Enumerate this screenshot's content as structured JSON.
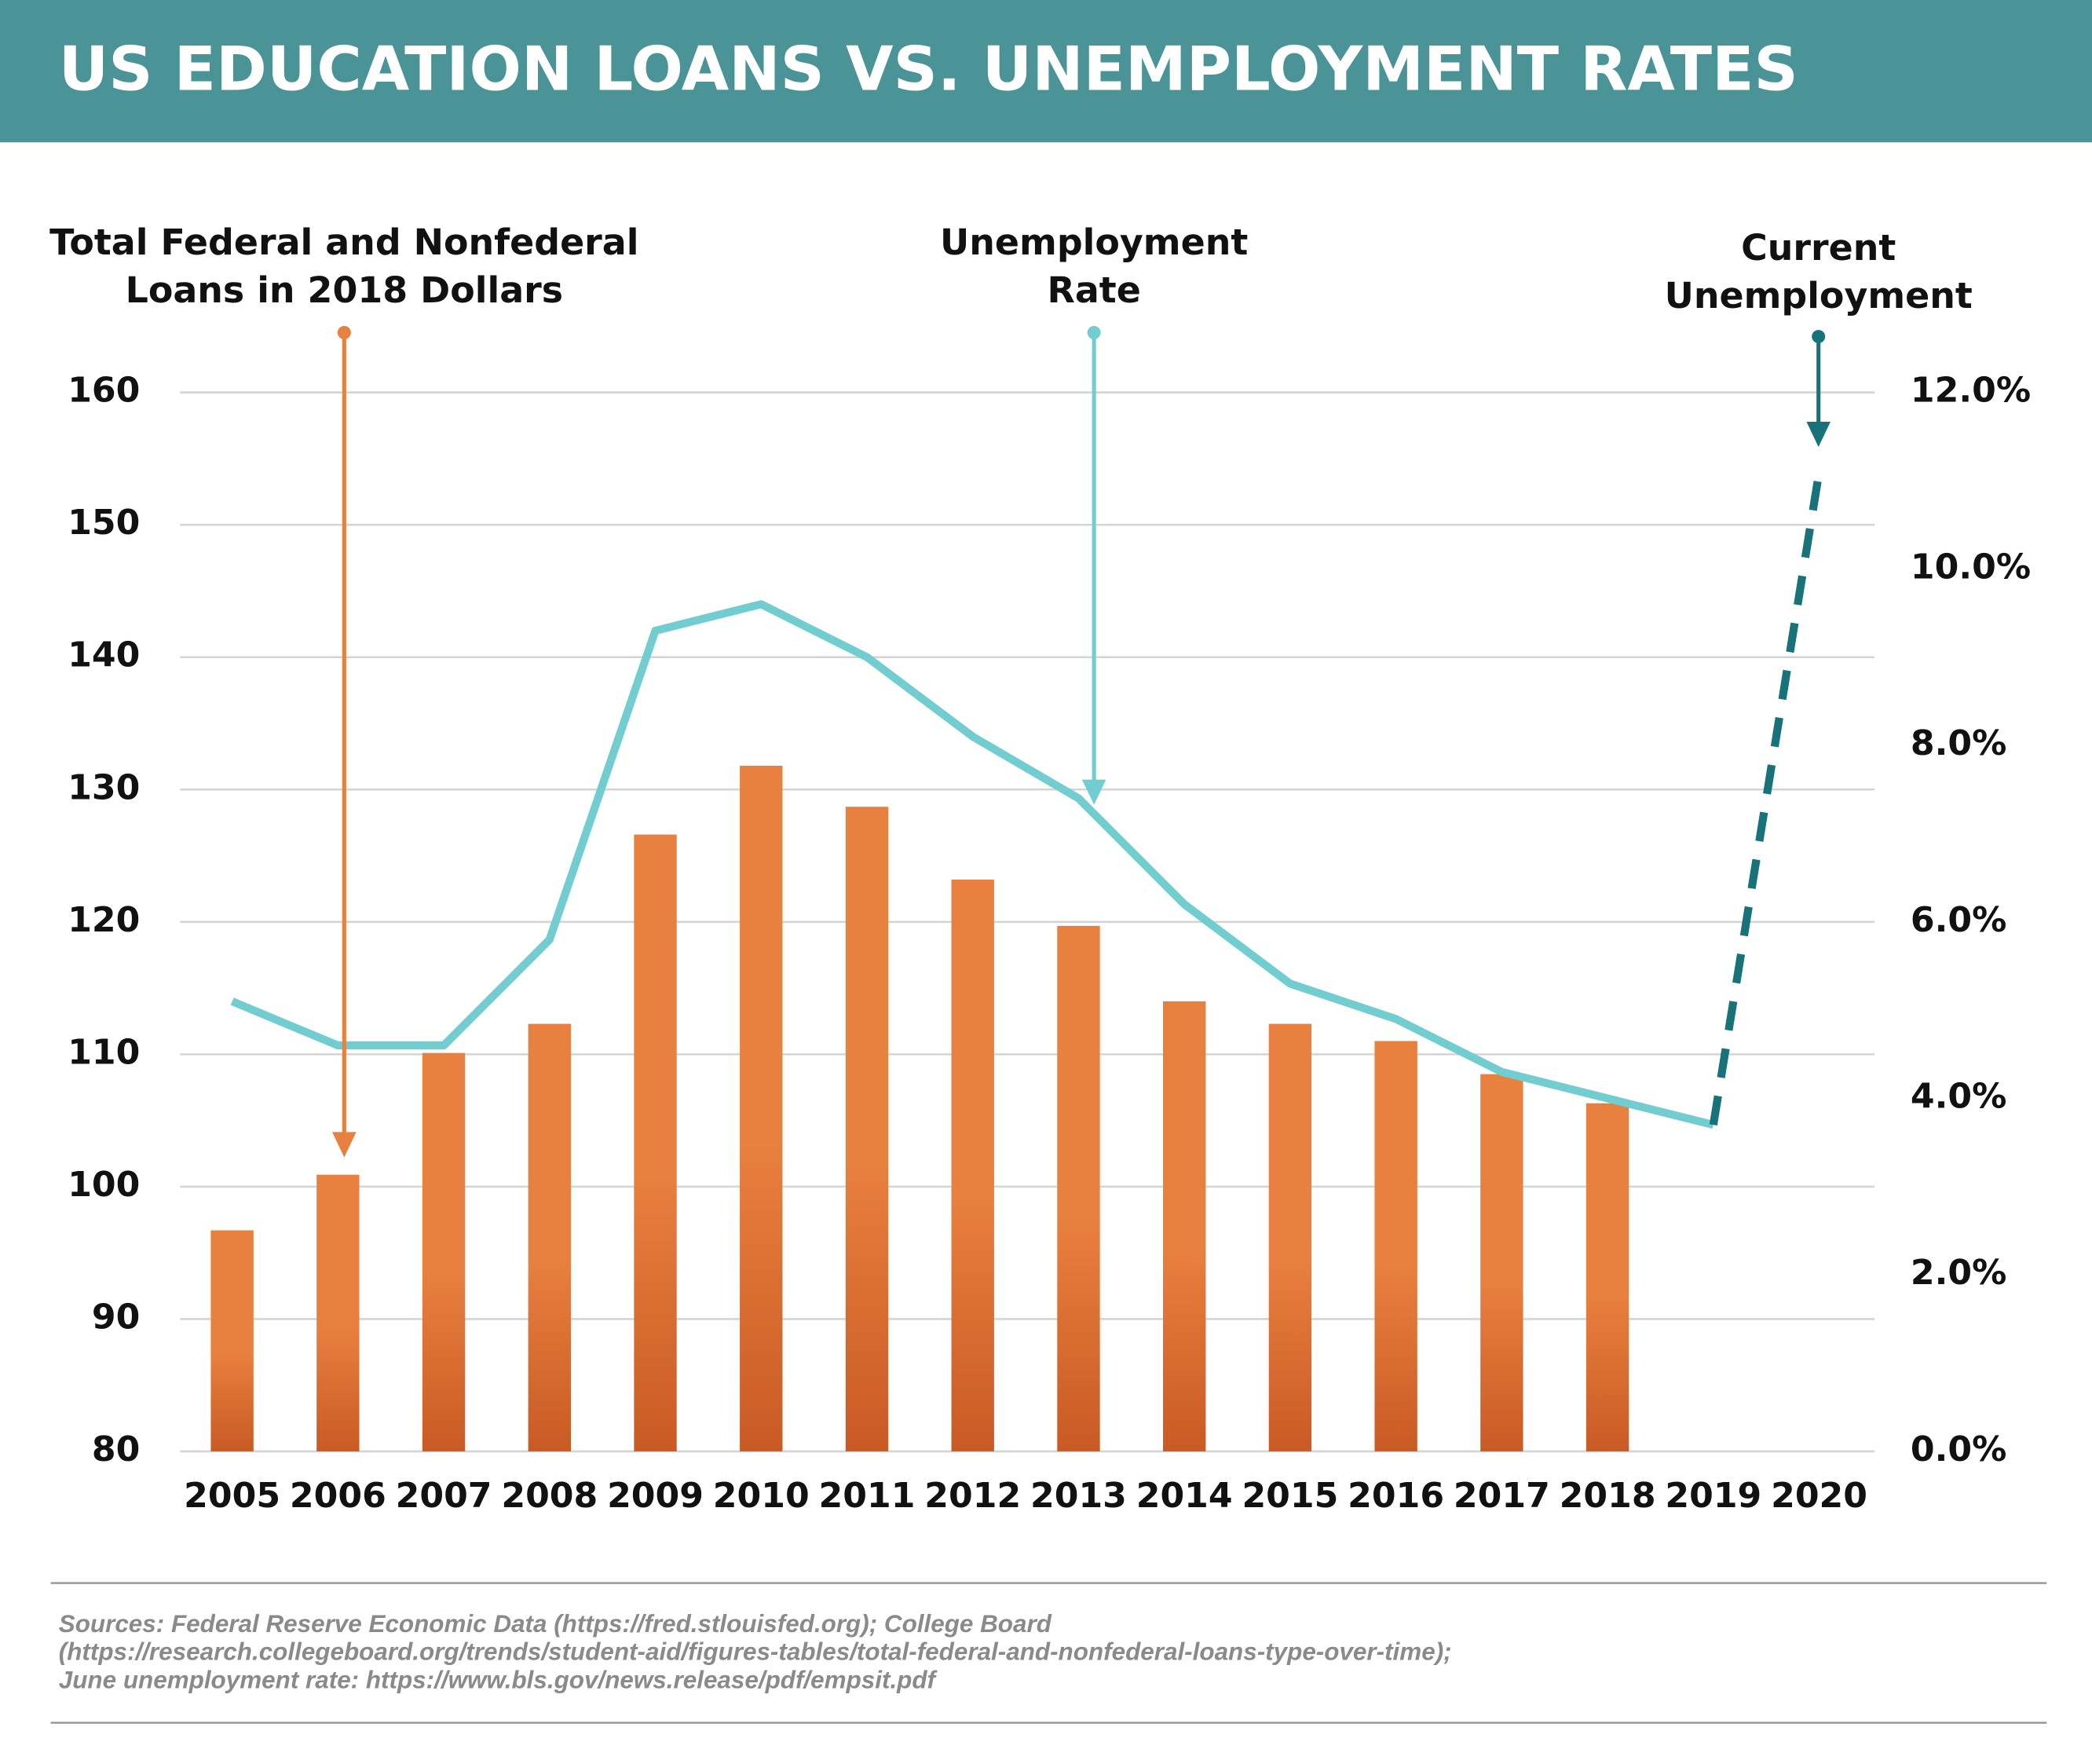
{
  "chart_data": {
    "type": "bar",
    "title": "US EDUCATION LOANS VS. UNEMPLOYMENT RATES",
    "categories": [
      "2005",
      "2006",
      "2007",
      "2008",
      "2009",
      "2010",
      "2011",
      "2012",
      "2013",
      "2014",
      "2015",
      "2016",
      "2017",
      "2018",
      "2019",
      "2020"
    ],
    "series": [
      {
        "type": "bar",
        "color": "#e8803f",
        "values": [
          96.7,
          100.9,
          110.1,
          112.3,
          126.6,
          131.8,
          128.7,
          123.2,
          119.7,
          114.0,
          112.3,
          111.0,
          108.5,
          106.3,
          null,
          null
        ]
      },
      {
        "type": "line",
        "axis": "y2",
        "color": "#72cdd0",
        "values": [
          5.1,
          4.6,
          4.6,
          5.8,
          9.3,
          9.6,
          9.0,
          8.1,
          7.4,
          6.2,
          5.3,
          4.9,
          4.3,
          4.0,
          3.7,
          null
        ]
      },
      {
        "type": "line",
        "axis": "y2",
        "color": "#17727a",
        "dashed": true,
        "values": [
          null,
          null,
          null,
          null,
          null,
          null,
          null,
          null,
          null,
          null,
          null,
          null,
          null,
          null,
          3.7,
          11.1
        ]
      }
    ],
    "ylim": [
      80,
      160
    ],
    "yticks": [
      80,
      90,
      100,
      110,
      120,
      130,
      140,
      150,
      160
    ],
    "y2lim": [
      0,
      12
    ],
    "y2ticks": [
      {
        "value": 0,
        "label": "0.0%"
      },
      {
        "value": 2,
        "label": "2.0%"
      },
      {
        "value": 4,
        "label": "4.0%"
      },
      {
        "value": 6,
        "label": "6.0%"
      },
      {
        "value": 8,
        "label": "8.0%"
      },
      {
        "value": 10,
        "label": "10.0%"
      },
      {
        "value": 12,
        "label": "12.0%"
      }
    ],
    "grid": true,
    "annotations": [
      {
        "lines": [
          "Total Federal and Nonfederal",
          "Loans in 2018 Dollars"
        ]
      },
      {
        "lines": [
          "Unemployment",
          "Rate"
        ]
      },
      {
        "lines": [
          "Current",
          "Unemployment"
        ]
      }
    ],
    "source": [
      "Sources: Federal Reserve Economic Data (https://fred.stlouisfed.org); College Board",
      "(https://research.collegeboard.org/trends/student-aid/figures-tables/total-federal-and-nonfederal-loans-type-over-time);",
      "June unemployment rate: https://www.bls.gov/news.release/pdf/empsit.pdf"
    ]
  }
}
